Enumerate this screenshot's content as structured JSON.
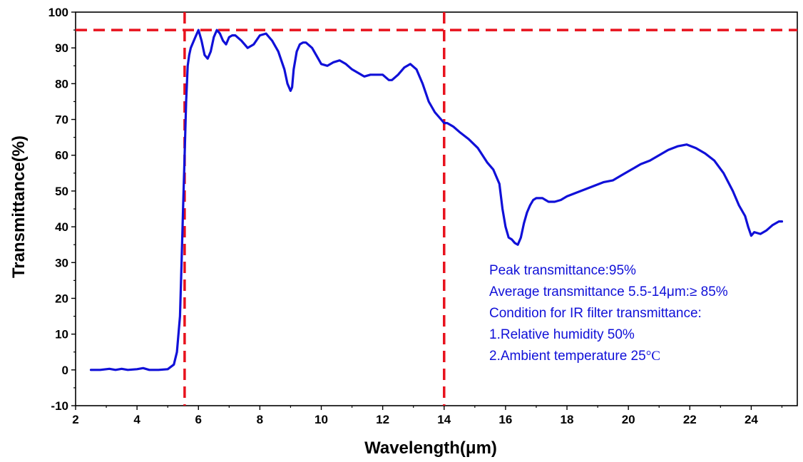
{
  "chart_data": {
    "type": "line",
    "xlabel": "Wavelength(μm)",
    "ylabel": "Transmittance(%)",
    "xlim": [
      2,
      25.5
    ],
    "ylim": [
      -10,
      100
    ],
    "xticks": [
      2,
      4,
      6,
      8,
      10,
      12,
      14,
      16,
      18,
      20,
      22,
      24
    ],
    "yticks": [
      -10,
      0,
      10,
      20,
      30,
      40,
      50,
      60,
      70,
      80,
      90,
      100
    ],
    "grid": false,
    "series": [
      {
        "color": "#1010d8",
        "x": [
          2.5,
          2.8,
          3.1,
          3.3,
          3.5,
          3.7,
          4.0,
          4.2,
          4.4,
          4.7,
          5.0,
          5.2,
          5.3,
          5.4,
          5.45,
          5.5,
          5.55,
          5.6,
          5.65,
          5.7,
          5.75,
          5.8,
          5.9,
          6.0,
          6.1,
          6.2,
          6.3,
          6.4,
          6.5,
          6.6,
          6.7,
          6.8,
          6.9,
          7.0,
          7.1,
          7.2,
          7.4,
          7.6,
          7.8,
          8.0,
          8.2,
          8.4,
          8.6,
          8.8,
          8.9,
          9.0,
          9.05,
          9.1,
          9.2,
          9.3,
          9.4,
          9.5,
          9.7,
          9.9,
          10.0,
          10.2,
          10.4,
          10.6,
          10.8,
          11.0,
          11.2,
          11.4,
          11.6,
          11.8,
          12.0,
          12.2,
          12.3,
          12.5,
          12.7,
          12.9,
          13.1,
          13.3,
          13.5,
          13.7,
          13.9,
          14.0,
          14.1,
          14.3,
          14.5,
          14.8,
          15.1,
          15.4,
          15.6,
          15.8,
          15.9,
          16.0,
          16.1,
          16.2,
          16.3,
          16.4,
          16.5,
          16.6,
          16.7,
          16.8,
          16.9,
          17.0,
          17.2,
          17.4,
          17.6,
          17.8,
          18.0,
          18.3,
          18.6,
          18.9,
          19.2,
          19.5,
          19.8,
          20.1,
          20.4,
          20.7,
          21.0,
          21.3,
          21.6,
          21.9,
          22.2,
          22.5,
          22.8,
          23.1,
          23.4,
          23.6,
          23.8,
          23.9,
          24.0,
          24.1,
          24.3,
          24.5,
          24.7,
          24.9,
          25.0
        ],
        "y": [
          0,
          0,
          0.3,
          0,
          0.3,
          0,
          0.2,
          0.5,
          0,
          0,
          0.2,
          1.5,
          5,
          15,
          30,
          45,
          60,
          75,
          85,
          88,
          90,
          91,
          93,
          95,
          92,
          88,
          87,
          89,
          93,
          95,
          94,
          92,
          91,
          93,
          93.5,
          93.5,
          92,
          90,
          91,
          93.5,
          94,
          92,
          89,
          84,
          80,
          78,
          79,
          84,
          89,
          91,
          91.5,
          91.5,
          90,
          87,
          85.5,
          85,
          86,
          86.5,
          85.5,
          84,
          83,
          82,
          82.5,
          82.5,
          82.5,
          81,
          81,
          82.5,
          84.5,
          85.5,
          84,
          80,
          75,
          72,
          70,
          69,
          69,
          68,
          66.5,
          64.5,
          62,
          58,
          56,
          52,
          45,
          40,
          37,
          36.5,
          35.5,
          35,
          37,
          41,
          44,
          46,
          47.5,
          48,
          48,
          47,
          47,
          47.5,
          48.5,
          49.5,
          50.5,
          51.5,
          52.5,
          53,
          54.5,
          56,
          57.5,
          58.5,
          60,
          61.5,
          62.5,
          63,
          62,
          60.5,
          58.5,
          55,
          50,
          46,
          43,
          40,
          37.5,
          38.5,
          38,
          39,
          40.5,
          41.5,
          41.5
        ]
      }
    ],
    "reference_lines": [
      {
        "axis": "y",
        "value": 95,
        "color": "#e8121d",
        "style": "dashed"
      },
      {
        "axis": "x",
        "value": 5.55,
        "color": "#e8121d",
        "style": "dashed"
      },
      {
        "axis": "x",
        "value": 14,
        "color": "#e8121d",
        "style": "dashed"
      }
    ]
  },
  "annotation": {
    "color": "#1010d8",
    "line1": "Peak transmittance:95%",
    "line2": "Average transmittance 5.5-14μm:≥ 85%",
    "line3": "Condition for IR filter transmittance:",
    "line4": "1.Relative humidity 50%",
    "line5_text": "2.Ambient temperature 25",
    "line5_symbol": "°C"
  }
}
